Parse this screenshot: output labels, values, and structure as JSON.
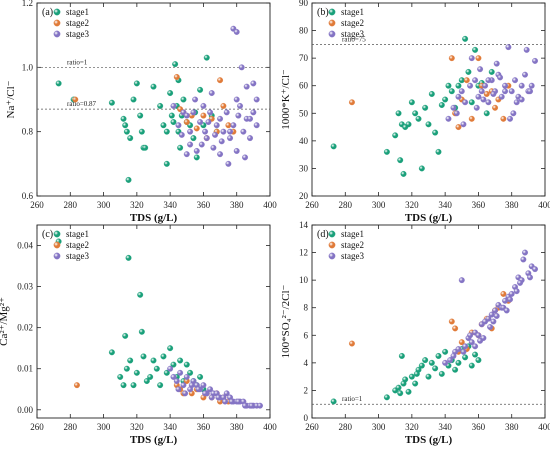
{
  "chart_data": [
    {
      "type": "scatter",
      "panel_label": "(a)",
      "xlabel": "TDS (g/L)",
      "ylabel": "Na⁺/Cl⁻",
      "xlim": [
        260,
        400
      ],
      "ylim": [
        0.6,
        1.2
      ],
      "xticks": [
        260,
        280,
        300,
        320,
        340,
        360,
        380,
        400
      ],
      "yticks": [
        0.6,
        0.8,
        1.0,
        1.2
      ],
      "ytick_decimals": 1,
      "legend": "top-left",
      "grid": false,
      "reference_lines": [
        {
          "y": 1.0,
          "label": "ratio=1"
        },
        {
          "y": 0.87,
          "label": "ratio=0.87"
        }
      ],
      "series": [
        {
          "name": "stage1",
          "color": "#1aa07a",
          "x": [
            273,
            282,
            305,
            312,
            313,
            314,
            315,
            316,
            318,
            320,
            322,
            323,
            324,
            325,
            330,
            334,
            336,
            338,
            340,
            341,
            342,
            343,
            344,
            345,
            346,
            347,
            348,
            350,
            352,
            354,
            355,
            356,
            358,
            360,
            362,
            365,
            368,
            345,
            338
          ],
          "y": [
            0.95,
            0.9,
            0.89,
            0.84,
            0.82,
            0.8,
            0.65,
            0.78,
            0.9,
            0.95,
            0.85,
            0.8,
            0.75,
            0.75,
            0.94,
            0.88,
            0.82,
            0.8,
            0.92,
            0.85,
            0.83,
            1.01,
            0.88,
            0.8,
            0.75,
            0.85,
            0.9,
            0.83,
            0.82,
            0.78,
            0.86,
            0.72,
            0.93,
            0.82,
            1.03,
            0.85,
            0.8,
            0.96,
            0.7
          ]
        },
        {
          "name": "stage2",
          "color": "#e07b39",
          "x": [
            283,
            344,
            346,
            348,
            350,
            353,
            356,
            360,
            362,
            365,
            368,
            370,
            372,
            375,
            378
          ],
          "y": [
            0.9,
            0.97,
            0.87,
            0.86,
            0.83,
            0.85,
            0.81,
            0.85,
            0.78,
            0.84,
            0.8,
            0.96,
            0.88,
            0.82,
            0.8
          ],
          "count": 15
        },
        {
          "name": "stage3",
          "color": "#8474c4",
          "x": [
            342,
            345,
            348,
            350,
            352,
            355,
            358,
            360,
            362,
            364,
            366,
            368,
            370,
            372,
            374,
            376,
            378,
            380,
            382,
            384,
            386,
            388,
            390,
            392,
            378,
            380,
            383,
            352,
            356,
            361,
            365,
            370,
            375,
            380,
            385,
            388,
            392,
            347,
            350,
            354,
            359,
            363,
            367,
            371,
            376,
            381,
            386,
            390
          ],
          "y": [
            0.88,
            0.82,
            0.86,
            0.85,
            0.8,
            0.9,
            0.83,
            0.88,
            0.78,
            0.86,
            0.75,
            0.82,
            0.84,
            0.8,
            0.86,
            0.78,
            0.82,
            0.9,
            0.88,
            0.8,
            0.84,
            0.78,
            0.86,
            0.82,
            1.12,
            1.11,
            1.0,
            0.76,
            0.74,
            0.8,
            0.92,
            0.73,
            0.7,
            0.74,
            0.72,
            0.84,
            0.9,
            0.79,
            0.73,
            0.86,
            0.76,
            0.83,
            0.79,
            0.77,
            0.8,
            0.85,
            0.94,
            0.95
          ]
        }
      ]
    },
    {
      "type": "scatter",
      "panel_label": "(b)",
      "xlabel": "TDS (g/L)",
      "ylabel": "1000*K⁺/Cl⁻",
      "xlim": [
        260,
        400
      ],
      "ylim": [
        20,
        90
      ],
      "xticks": [
        260,
        280,
        300,
        320,
        340,
        360,
        380,
        400
      ],
      "yticks": [
        20,
        30,
        40,
        50,
        60,
        70,
        80,
        90
      ],
      "ytick_decimals": 0,
      "legend": "top-left",
      "grid": false,
      "reference_lines": [
        {
          "y": 75,
          "label": "ratio=75"
        }
      ],
      "series": [
        {
          "name": "stage1",
          "color": "#1aa07a",
          "x": [
            273,
            305,
            310,
            312,
            313,
            314,
            315,
            316,
            318,
            320,
            322,
            324,
            326,
            328,
            330,
            332,
            334,
            336,
            338,
            340,
            342,
            344,
            346,
            348,
            350,
            352,
            354,
            356,
            358,
            360,
            362,
            365,
            368
          ],
          "y": [
            38,
            36,
            42,
            50,
            33,
            46,
            28,
            45,
            46,
            54,
            50,
            48,
            30,
            52,
            46,
            57,
            43,
            36,
            53,
            55,
            60,
            58,
            52,
            60,
            62,
            77,
            65,
            54,
            73,
            60,
            61,
            50,
            65
          ],
          "count": 33
        },
        {
          "name": "stage2",
          "color": "#e07b39",
          "x": [
            284,
            344,
            346,
            348,
            350,
            353,
            356,
            360,
            362,
            365,
            368,
            370,
            372,
            375,
            378
          ],
          "y": [
            54,
            70,
            50,
            45,
            55,
            62,
            48,
            70,
            60,
            57,
            58,
            52,
            55,
            48,
            60
          ]
        },
        {
          "name": "stage3",
          "color": "#8474c4",
          "x": [
            342,
            345,
            348,
            350,
            352,
            355,
            358,
            360,
            362,
            364,
            366,
            368,
            370,
            372,
            374,
            376,
            378,
            380,
            382,
            384,
            386,
            388,
            390,
            392,
            394,
            356,
            361,
            366,
            371,
            376,
            381,
            386,
            391,
            347,
            351,
            359,
            363,
            369,
            373,
            379,
            383,
            389
          ],
          "y": [
            48,
            52,
            56,
            58,
            54,
            60,
            62,
            56,
            58,
            60,
            54,
            62,
            58,
            64,
            56,
            60,
            74,
            58,
            62,
            56,
            60,
            64,
            58,
            60,
            69,
            70,
            66,
            62,
            68,
            58,
            50,
            55,
            58,
            50,
            46,
            52,
            55,
            57,
            63,
            48,
            54,
            73
          ]
        }
      ]
    },
    {
      "type": "scatter",
      "panel_label": "(c)",
      "xlabel": "TDS (g/L)",
      "ylabel": "Ca²⁺/Mg²⁺",
      "xlim": [
        260,
        400
      ],
      "ylim": [
        -0.002,
        0.045
      ],
      "xticks": [
        260,
        280,
        300,
        320,
        340,
        360,
        380,
        400
      ],
      "yticks": [
        0.0,
        0.01,
        0.02,
        0.03,
        0.04
      ],
      "ytick_decimals": 2,
      "legend": "top-left",
      "grid": false,
      "reference_lines": [],
      "series": [
        {
          "name": "stage1",
          "color": "#1aa07a",
          "x": [
            273,
            305,
            310,
            312,
            313,
            314,
            315,
            316,
            318,
            320,
            322,
            323,
            324,
            326,
            328,
            330,
            332,
            334,
            336,
            338,
            340,
            342,
            344,
            346,
            348,
            350,
            352,
            354,
            356,
            358,
            360
          ],
          "y": [
            0.041,
            0.014,
            0.008,
            0.006,
            0.018,
            0.01,
            0.037,
            0.012,
            0.006,
            0.009,
            0.028,
            0.019,
            0.013,
            0.007,
            0.008,
            0.012,
            0.01,
            0.006,
            0.013,
            0.009,
            0.015,
            0.011,
            0.008,
            0.012,
            0.007,
            0.011,
            0.009,
            0.007,
            0.006,
            0.008,
            0.005
          ],
          "count": 31
        },
        {
          "name": "stage2",
          "color": "#e07b39",
          "x": [
            284,
            344,
            346,
            348,
            350,
            353,
            356,
            360,
            362,
            365,
            368,
            370,
            372,
            375
          ],
          "y": [
            0.006,
            0.006,
            0.005,
            0.004,
            0.007,
            0.004,
            0.005,
            0.003,
            0.004,
            0.003,
            0.004,
            0.002,
            0.003,
            0.002
          ]
        },
        {
          "name": "stage3",
          "color": "#8474c4",
          "x": [
            340,
            342,
            344,
            346,
            348,
            350,
            352,
            354,
            356,
            358,
            360,
            362,
            364,
            366,
            368,
            370,
            372,
            374,
            376,
            378,
            380,
            382,
            384,
            386,
            388,
            390,
            392,
            394,
            345,
            349,
            353,
            357,
            361,
            365,
            369,
            373,
            377,
            381,
            385,
            389
          ],
          "y": [
            0.01,
            0.008,
            0.007,
            0.009,
            0.006,
            0.008,
            0.005,
            0.007,
            0.006,
            0.005,
            0.006,
            0.004,
            0.005,
            0.004,
            0.004,
            0.003,
            0.003,
            0.004,
            0.003,
            0.002,
            0.002,
            0.002,
            0.002,
            0.001,
            0.001,
            0.001,
            0.001,
            0.001,
            0.005,
            0.004,
            0.006,
            0.005,
            0.004,
            0.003,
            0.003,
            0.002,
            0.002,
            0.002,
            0.001,
            0.001
          ]
        }
      ]
    },
    {
      "type": "scatter",
      "panel_label": "(d)",
      "xlabel": "TDS (g/L)",
      "ylabel": "100*SO₄²⁻/2Cl⁻",
      "xlim": [
        260,
        400
      ],
      "ylim": [
        0,
        14
      ],
      "xticks": [
        260,
        280,
        300,
        320,
        340,
        360,
        380,
        400
      ],
      "yticks": [
        0,
        2,
        4,
        6,
        8,
        10,
        12,
        14
      ],
      "ytick_decimals": 0,
      "legend": "top-left",
      "grid": false,
      "reference_lines": [
        {
          "y": 1,
          "label": "ratio=1"
        }
      ],
      "series": [
        {
          "name": "stage1",
          "color": "#1aa07a",
          "x": [
            273,
            305,
            310,
            312,
            313,
            314,
            315,
            316,
            318,
            320,
            322,
            323,
            324,
            326,
            328,
            330,
            332,
            334,
            336,
            338,
            340,
            342,
            344,
            346,
            348,
            350,
            352,
            354,
            356,
            358,
            360
          ],
          "y": [
            1.2,
            1.5,
            2.0,
            2.2,
            1.8,
            4.5,
            2.5,
            2.8,
            1.9,
            3.0,
            2.5,
            3.2,
            3.5,
            3.8,
            4.2,
            3.0,
            4.0,
            3.6,
            4.5,
            3.2,
            4.8,
            3.8,
            4.2,
            3.5,
            4.0,
            5.0,
            4.4,
            5.2,
            3.8,
            4.6,
            4.2
          ]
        },
        {
          "name": "stage2",
          "color": "#e07b39",
          "x": [
            284,
            344,
            346,
            348,
            350,
            353,
            356,
            360,
            362,
            365,
            368,
            370,
            372,
            375,
            378
          ],
          "y": [
            5.4,
            7.0,
            6.5,
            4.8,
            5.5,
            5.0,
            6.2,
            6.0,
            6.8,
            7.2,
            6.5,
            7.8,
            8.0,
            9.0,
            8.5
          ]
        },
        {
          "name": "stage3",
          "color": "#8474c4",
          "x": [
            340,
            343,
            346,
            348,
            350,
            352,
            354,
            356,
            358,
            360,
            362,
            364,
            366,
            368,
            370,
            372,
            374,
            376,
            378,
            380,
            382,
            384,
            386,
            388,
            390,
            392,
            394,
            351,
            358,
            363,
            367,
            371,
            375,
            379,
            383,
            387,
            391,
            345,
            355,
            361,
            369,
            377,
            385
          ],
          "y": [
            4.0,
            4.2,
            4.8,
            5.0,
            10.0,
            5.2,
            5.8,
            5.5,
            6.2,
            6.0,
            6.8,
            7.0,
            7.2,
            7.5,
            7.8,
            8.2,
            8.0,
            8.5,
            8.8,
            9.0,
            9.5,
            10.2,
            10.0,
            12.0,
            10.5,
            11.0,
            10.8,
            4.8,
            5.2,
            5.8,
            6.6,
            7.4,
            8.0,
            8.6,
            9.2,
            11.5,
            10.2,
            4.5,
            6.0,
            5.6,
            7.0,
            7.8,
            9.8
          ]
        }
      ]
    }
  ]
}
